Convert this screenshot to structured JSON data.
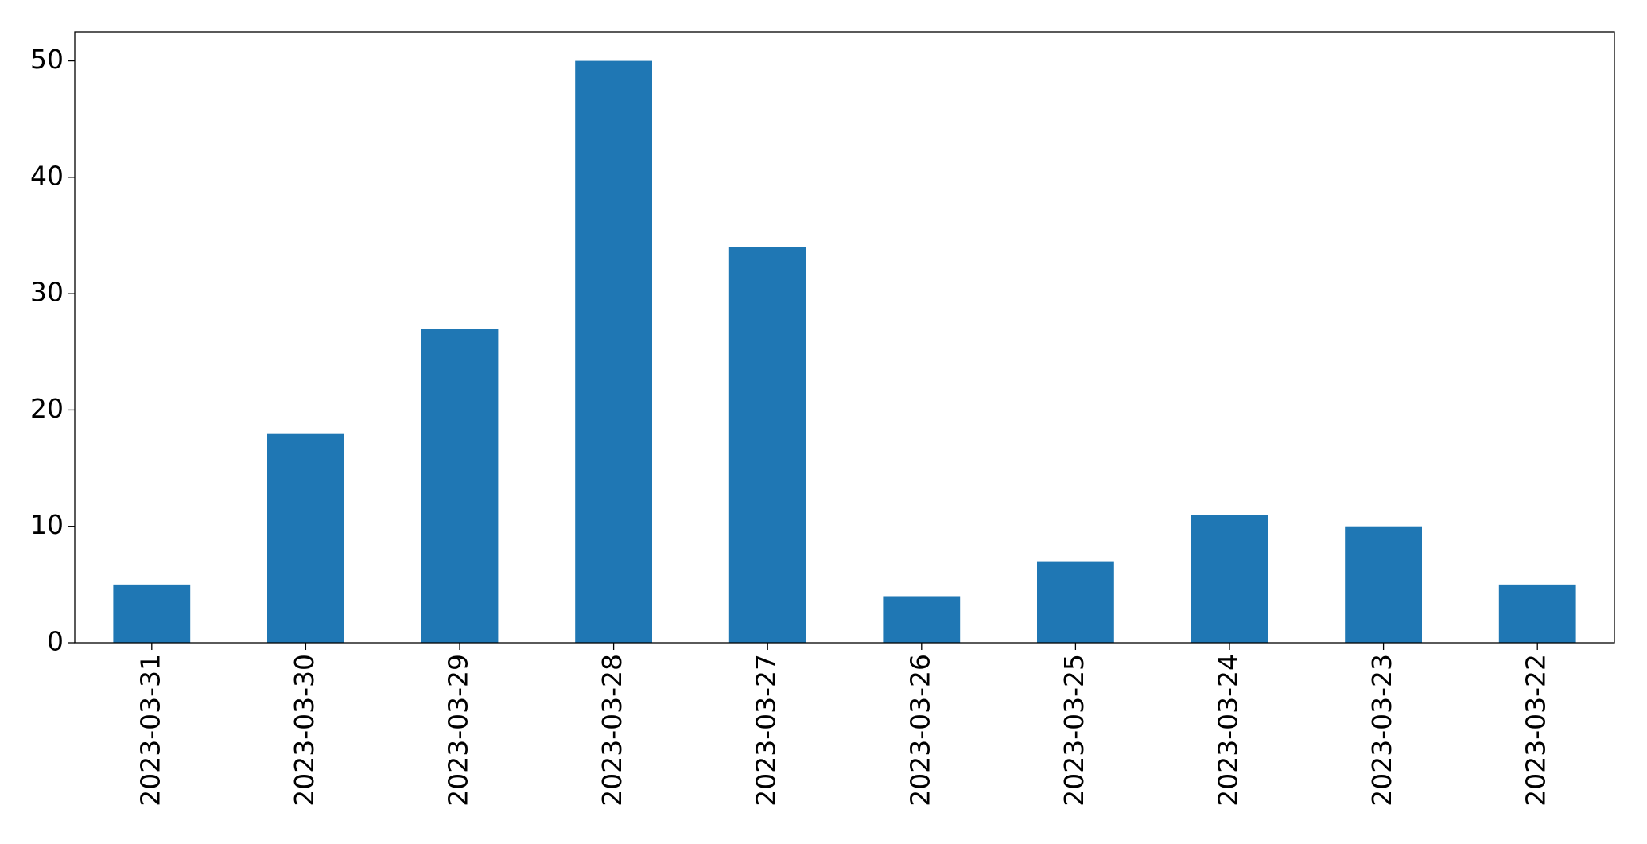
{
  "chart_data": {
    "type": "bar",
    "categories": [
      "2023-03-31",
      "2023-03-30",
      "2023-03-29",
      "2023-03-28",
      "2023-03-27",
      "2023-03-26",
      "2023-03-25",
      "2023-03-24",
      "2023-03-23",
      "2023-03-22"
    ],
    "values": [
      5,
      18,
      27,
      50,
      34,
      4,
      7,
      11,
      10,
      5
    ],
    "color": "#1f77b4",
    "ylim": [
      0,
      52.5
    ],
    "yticks": [
      0,
      10,
      20,
      30,
      40,
      50
    ],
    "grid": false
  }
}
